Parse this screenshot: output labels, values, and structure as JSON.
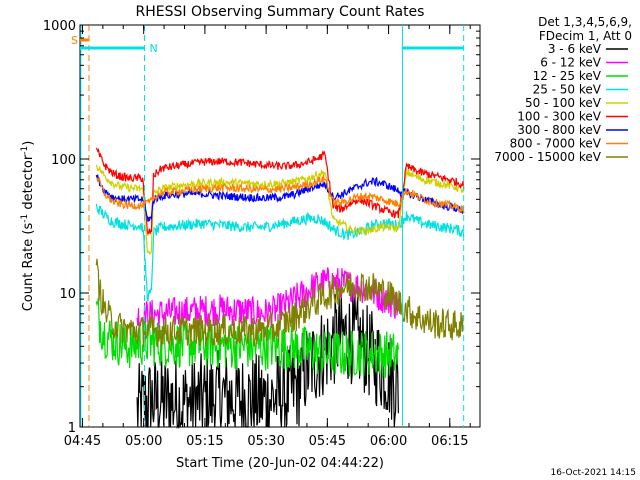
{
  "chart_data": {
    "type": "line",
    "title": "RHESSI Observing Summary Count Rates",
    "xlabel": "Start Time (20-Jun-02 04:44:22)",
    "ylabel_main": "Count Rate (s",
    "ylabel_sup1": "-1",
    "ylabel_mid": " detector",
    "ylabel_sup2": "-1",
    "ylabel_end": ")",
    "yscale": "log",
    "ylim": [
      1,
      1000
    ],
    "xlim_minutes": [
      0,
      98
    ],
    "x_ticks": [
      {
        "label": "04:45",
        "t": 0.6
      },
      {
        "label": "05:00",
        "t": 15.6
      },
      {
        "label": "05:15",
        "t": 30.6
      },
      {
        "label": "05:30",
        "t": 45.6
      },
      {
        "label": "05:45",
        "t": 60.6
      },
      {
        "label": "06:00",
        "t": 75.6
      },
      {
        "label": "06:15",
        "t": 90.6
      }
    ],
    "y_ticks": [
      {
        "label": "1",
        "v": 1
      },
      {
        "label": "10",
        "v": 10
      },
      {
        "label": "100",
        "v": 100
      },
      {
        "label": "1000",
        "v": 1000
      }
    ],
    "legend_header": [
      "Det 1,3,4,5,6,9,",
      "FDecim 1, Att 0"
    ],
    "timestamp": "16-Oct-2021 14:15",
    "flag_markers": [
      {
        "label": "S",
        "color": "#ff8000"
      },
      {
        "label": "N",
        "color": "#00e0e0"
      }
    ],
    "night_boundaries_minutes": [
      15.8,
      79.0,
      94.0
    ],
    "flag_boundaries_minutes": [
      2.2
    ],
    "series": [
      {
        "name": "3 - 6 keV",
        "color": "#000000",
        "t": [
          14,
          16,
          20,
          25,
          30,
          35,
          40,
          45,
          50,
          53,
          55,
          57,
          59,
          61,
          63,
          65,
          67,
          69,
          71,
          73,
          75,
          77,
          78
        ],
        "values": [
          1.3,
          1.5,
          1.6,
          1.5,
          1.6,
          1.7,
          1.6,
          1.6,
          1.7,
          2.0,
          2.6,
          3.0,
          3.5,
          4.0,
          4.6,
          4.8,
          4.6,
          4.0,
          3.5,
          3.0,
          2.6,
          2.2,
          2.0
        ]
      },
      {
        "name": "6 - 12 keV",
        "color": "#ff00ff",
        "t": [
          14,
          16,
          20,
          25,
          30,
          35,
          40,
          45,
          48,
          51,
          54,
          57,
          60,
          63,
          66,
          69,
          72,
          75,
          78
        ],
        "values": [
          6.6,
          6.8,
          7.0,
          7.2,
          7.4,
          7.5,
          7.3,
          7.0,
          7.4,
          8.3,
          9.5,
          11.0,
          12.0,
          12.0,
          11.5,
          11.0,
          10.0,
          9.0,
          8.0
        ]
      },
      {
        "name": "12 - 25 keV",
        "color": "#00dd00",
        "t": [
          4,
          5,
          6,
          8,
          10,
          12,
          14,
          16,
          20,
          30,
          40,
          50,
          55,
          60,
          65,
          70,
          75,
          78
        ],
        "values": [
          7.5,
          6.0,
          5.0,
          4.5,
          4.2,
          4.0,
          4.2,
          4.3,
          4.2,
          4.1,
          4.0,
          4.0,
          3.8,
          3.5,
          3.5,
          3.6,
          3.5,
          3.4
        ]
      },
      {
        "name": "25 - 50 keV",
        "color": "#00e0e0",
        "t": [
          4,
          6,
          8,
          10,
          12,
          14,
          15.4,
          16.5,
          17.5,
          18,
          20,
          25,
          30,
          35,
          40,
          45,
          50,
          52,
          54,
          56,
          58,
          60,
          62,
          64,
          66,
          68,
          70,
          72,
          74,
          76,
          78,
          80,
          83,
          86,
          89,
          92,
          94
        ],
        "values": [
          44,
          38,
          34,
          33,
          32,
          32,
          31,
          9.5,
          10,
          28,
          31,
          32,
          33,
          32,
          31,
          31,
          33,
          34,
          35,
          36,
          36,
          34,
          30,
          28,
          27,
          28,
          30,
          32,
          33,
          33,
          32,
          38,
          34,
          32,
          31,
          30,
          28
        ]
      },
      {
        "name": "50 - 100 keV",
        "color": "#d0d000",
        "t": [
          4,
          6,
          8,
          10,
          12,
          14,
          15.4,
          16.5,
          17.5,
          18,
          20,
          25,
          30,
          35,
          40,
          45,
          50,
          53,
          56,
          58,
          60,
          62,
          64,
          66,
          68,
          70,
          72,
          74,
          76,
          78,
          80,
          83,
          86,
          89,
          92,
          94
        ],
        "values": [
          90,
          75,
          66,
          62,
          61,
          60,
          60,
          20,
          21,
          55,
          60,
          64,
          66,
          67,
          66,
          65,
          66,
          68,
          72,
          76,
          80,
          35,
          33,
          30,
          29,
          29,
          30,
          31,
          31,
          30,
          80,
          72,
          68,
          65,
          62,
          58
        ]
      },
      {
        "name": "100 - 300 keV",
        "color": "#ff0000",
        "t": [
          4,
          6,
          8,
          10,
          12,
          14,
          15.4,
          16.5,
          17.5,
          18,
          20,
          25,
          30,
          35,
          40,
          45,
          50,
          53,
          56,
          58,
          60,
          62,
          64,
          66,
          68,
          70,
          72,
          74,
          76,
          78,
          80,
          83,
          86,
          89,
          92,
          94
        ],
        "values": [
          118,
          90,
          78,
          74,
          72,
          72,
          72,
          28,
          29,
          75,
          85,
          90,
          95,
          96,
          94,
          90,
          88,
          90,
          95,
          100,
          108,
          44,
          42,
          46,
          50,
          48,
          45,
          42,
          40,
          38,
          88,
          80,
          76,
          72,
          68,
          64
        ]
      },
      {
        "name": "300 - 800 keV",
        "color": "#0000ff",
        "t": [
          4,
          6,
          8,
          10,
          12,
          14,
          15.4,
          16.5,
          17.5,
          18,
          20,
          25,
          30,
          35,
          40,
          45,
          50,
          53,
          56,
          58,
          60,
          62,
          64,
          66,
          68,
          70,
          72,
          74,
          76,
          78,
          80,
          83,
          86,
          89,
          92,
          94
        ],
        "values": [
          75,
          58,
          52,
          50,
          50,
          50,
          50,
          36,
          36,
          50,
          53,
          55,
          55,
          53,
          52,
          51,
          52,
          55,
          60,
          63,
          65,
          52,
          54,
          58,
          62,
          66,
          68,
          66,
          62,
          58,
          56,
          52,
          48,
          45,
          43,
          41
        ]
      },
      {
        "name": "800 - 7000 keV",
        "color": "#ff8000",
        "t": [
          4,
          6,
          8,
          10,
          12,
          14,
          15.4,
          16.5,
          17.5,
          18,
          20,
          25,
          30,
          35,
          40,
          45,
          50,
          53,
          56,
          58,
          60,
          62,
          64,
          66,
          68,
          70,
          72,
          74,
          76,
          78,
          80,
          83,
          86,
          89,
          92,
          94
        ],
        "values": [
          75,
          55,
          48,
          46,
          45,
          45,
          45,
          47,
          48,
          52,
          56,
          58,
          60,
          61,
          60,
          59,
          60,
          62,
          65,
          68,
          72,
          48,
          47,
          50,
          52,
          53,
          52,
          50,
          48,
          46,
          58,
          52,
          48,
          46,
          44,
          42
        ]
      },
      {
        "name": "7000 - 15000 keV",
        "color": "#808000",
        "t": [
          4,
          5,
          6,
          8,
          10,
          14,
          20,
          25,
          30,
          35,
          40,
          45,
          48,
          52,
          56,
          60,
          64,
          68,
          72,
          76,
          79,
          82,
          86,
          90,
          94
        ],
        "values": [
          15,
          10,
          7.5,
          6.0,
          5.5,
          5.2,
          5.2,
          5.3,
          5.2,
          5.3,
          5.2,
          5.3,
          5.5,
          6.5,
          8.0,
          9.5,
          11,
          11.5,
          11,
          9.5,
          8.0,
          6.8,
          6.0,
          5.8,
          5.6
        ]
      }
    ]
  }
}
